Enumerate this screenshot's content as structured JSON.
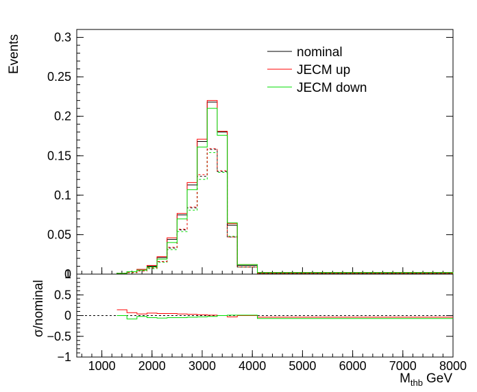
{
  "chart_data": [
    {
      "type": "line",
      "panel": "top",
      "xlabel_main": "M",
      "xlabel_sub": "thb",
      "xlabel_unit": "GeV",
      "ylabel": "Events",
      "xlim": [
        500,
        8000
      ],
      "ylim": [
        0,
        0.31
      ],
      "yticks": [
        0,
        0.05,
        0.1,
        0.15,
        0.2,
        0.25,
        0.3
      ],
      "ytick_labels": [
        "0",
        "0.05",
        "0.1",
        "0.15",
        "0.2",
        "0.25",
        "0.3"
      ],
      "legend_position": "top-right",
      "bin_edges": [
        1300,
        1500,
        1700,
        1900,
        2100,
        2300,
        2500,
        2700,
        2900,
        3100,
        3300,
        3500,
        3700,
        4100,
        8000
      ],
      "series": [
        {
          "name": "nominal",
          "color": "#000000",
          "style": "solid",
          "values": [
            0.001,
            0.003,
            0.006,
            0.01,
            0.021,
            0.044,
            0.075,
            0.113,
            0.168,
            0.218,
            0.18,
            0.062,
            0.011,
            0.002
          ]
        },
        {
          "name": "JECM up",
          "color": "#ff0000",
          "style": "solid",
          "values": [
            0.001,
            0.003,
            0.006,
            0.011,
            0.022,
            0.046,
            0.077,
            0.116,
            0.171,
            0.22,
            0.181,
            0.064,
            0.012,
            0.002
          ]
        },
        {
          "name": "JECM down",
          "color": "#00dd00",
          "style": "solid",
          "values": [
            0.001,
            0.003,
            0.005,
            0.009,
            0.019,
            0.04,
            0.07,
            0.107,
            0.161,
            0.21,
            0.176,
            0.065,
            0.012,
            0.002
          ]
        },
        {
          "name": "",
          "color": "#000000",
          "style": "dashed",
          "values": [
            0.001,
            0.002,
            0.004,
            0.008,
            0.016,
            0.033,
            0.056,
            0.084,
            0.124,
            0.158,
            0.13,
            0.047,
            0.009,
            0.001
          ]
        },
        {
          "name": "",
          "color": "#00dd00",
          "style": "dashed",
          "values": [
            0.001,
            0.002,
            0.004,
            0.007,
            0.015,
            0.031,
            0.054,
            0.081,
            0.12,
            0.154,
            0.129,
            0.048,
            0.009,
            0.001
          ]
        },
        {
          "name": "",
          "color": "#ff0000",
          "style": "dashed",
          "values": [
            0.001,
            0.002,
            0.004,
            0.008,
            0.016,
            0.034,
            0.057,
            0.085,
            0.126,
            0.159,
            0.131,
            0.047,
            0.009,
            0.001
          ]
        }
      ]
    },
    {
      "type": "line",
      "panel": "bottom",
      "ylabel": "σ/nominal",
      "xlim": [
        500,
        8000
      ],
      "ylim": [
        -1,
        1
      ],
      "yticks": [
        -1,
        -0.5,
        0,
        0.5,
        1
      ],
      "ytick_labels": [
        "−1",
        "−0.5",
        "0",
        "0.5",
        "1"
      ],
      "xticks": [
        1000,
        2000,
        3000,
        4000,
        5000,
        6000,
        7000,
        8000
      ],
      "xtick_labels": [
        "1000",
        "2000",
        "3000",
        "4000",
        "5000",
        "6000",
        "7000",
        "8000"
      ],
      "reference_line": 0,
      "bin_edges": [
        1300,
        1500,
        1700,
        1900,
        2100,
        2300,
        2500,
        2700,
        2900,
        3100,
        3300,
        3500,
        3700,
        4100,
        8000
      ],
      "series": [
        {
          "name": "JECM up",
          "color": "#ff0000",
          "values": [
            0.14,
            0.07,
            0.04,
            0.06,
            0.05,
            0.05,
            0.04,
            0.03,
            0.02,
            0.01,
            0.0,
            -0.03,
            0.0,
            -0.04
          ]
        },
        {
          "name": "JECM down",
          "color": "#00dd00",
          "values": [
            0.0,
            -0.08,
            -0.02,
            -0.05,
            -0.06,
            -0.05,
            -0.05,
            -0.04,
            -0.03,
            -0.02,
            0.0,
            0.01,
            0.01,
            -0.07
          ]
        }
      ]
    }
  ]
}
